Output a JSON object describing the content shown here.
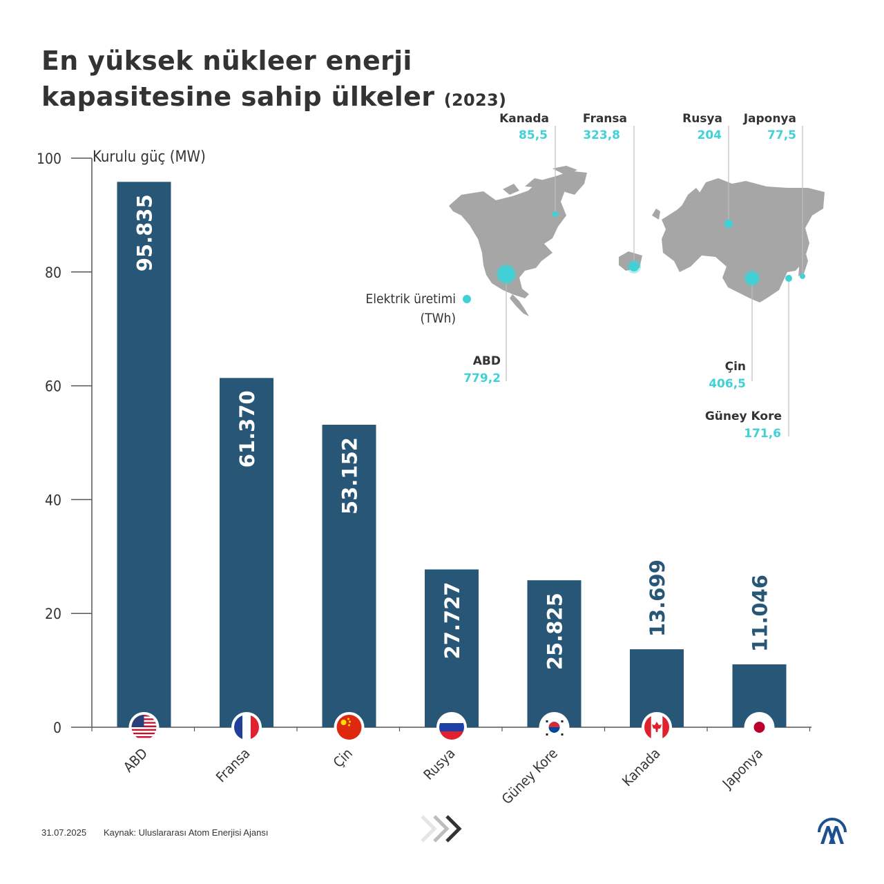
{
  "title": {
    "main": "En yüksek nükleer enerji kapasitesine sahip ülkeler",
    "year": "(2023)"
  },
  "chart_data": {
    "type": "bar",
    "ylabel": "Kurulu güç (MW)",
    "ylim": [
      0,
      100
    ],
    "yticks": [
      0,
      20,
      40,
      60,
      80,
      100
    ],
    "categories": [
      "ABD",
      "Fransa",
      "Çin",
      "Rusya",
      "Güney Kore",
      "Kanada",
      "Japonya"
    ],
    "values": [
      95.835,
      61.37,
      53.152,
      27.727,
      25.825,
      13.699,
      11.046
    ],
    "value_labels": [
      "95.835",
      "61.370",
      "53.152",
      "27.727",
      "25.825",
      "13.699",
      "11.046"
    ],
    "flag_icons": [
      "us-flag-icon",
      "france-flag-icon",
      "china-flag-icon",
      "russia-flag-icon",
      "south-korea-flag-icon",
      "canada-flag-icon",
      "japan-flag-icon"
    ],
    "bar_color": "#275677",
    "grid": false
  },
  "map": {
    "legend_label": "Elektrik üretimi (TWh)",
    "accent_color": "#3fd1d6",
    "land_color": "#a6a6a6",
    "callouts": [
      {
        "name": "Kanada",
        "value": "85,5"
      },
      {
        "name": "Fransa",
        "value": "323,8"
      },
      {
        "name": "Rusya",
        "value": "204"
      },
      {
        "name": "Japonya",
        "value": "77,5"
      },
      {
        "name": "ABD",
        "value": "779,2"
      },
      {
        "name": "Çin",
        "value": "406,5"
      },
      {
        "name": "Güney Kore",
        "value": "171,6"
      }
    ],
    "bubble_values": [
      85.5,
      323.8,
      204,
      77.5,
      779.2,
      406.5,
      171.6
    ]
  },
  "footer": {
    "date": "31.07.2025",
    "source": "Kaynak: Uluslararası Atom Enerjisi Ajansı",
    "logo_icon": "aa-logo-icon",
    "nav_icon": "triple-chevron-right-icon"
  }
}
